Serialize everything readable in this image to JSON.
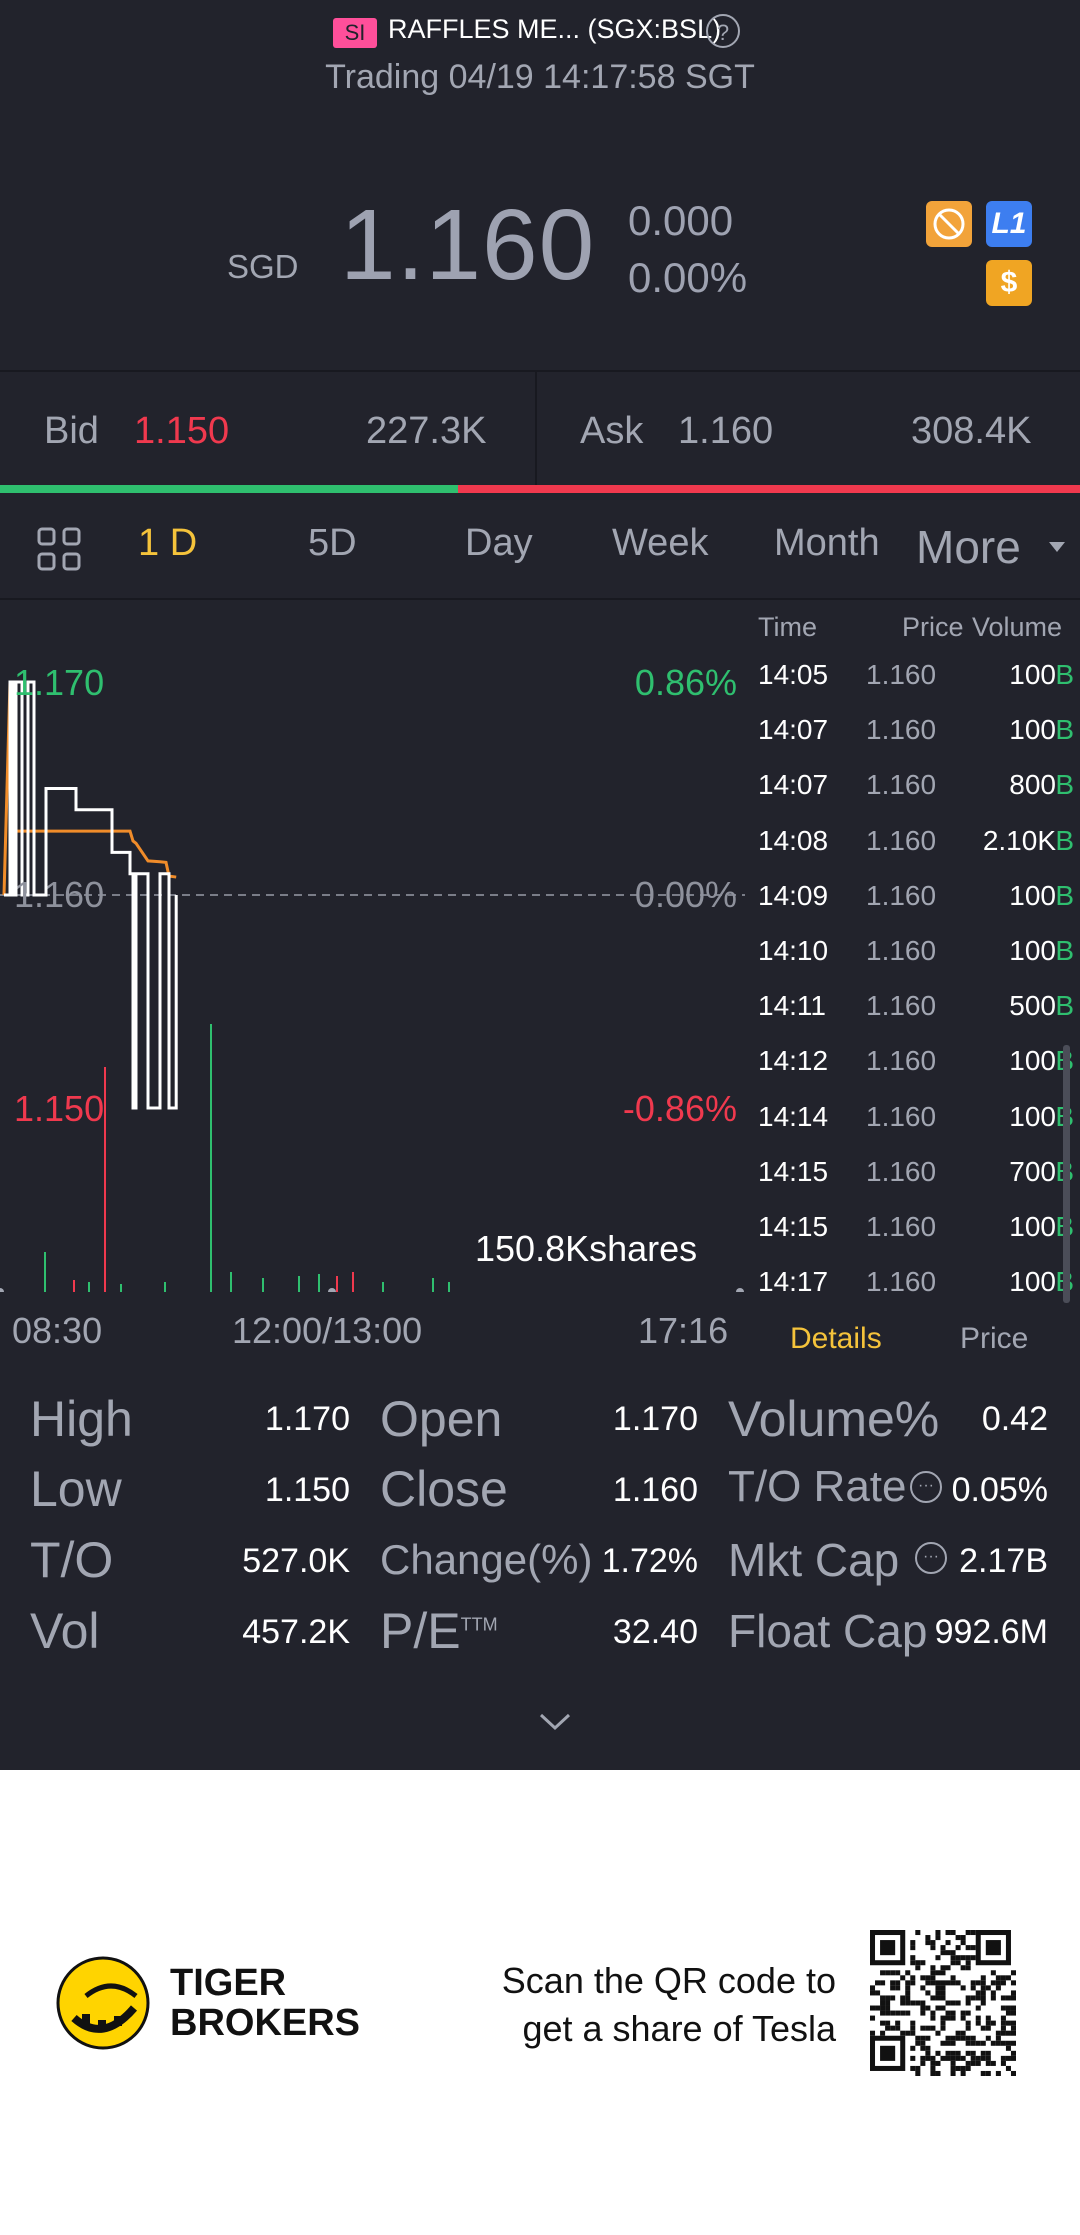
{
  "header": {
    "market_tag": "SI",
    "symbol": "RAFFLES ME... (SGX:BSL)",
    "help_icon": "?",
    "trading_status": "Trading 04/19 14:17:58 SGT",
    "currency": "SGD",
    "price": "1.160",
    "change": "0.000",
    "change_pct": "0.00%",
    "badges": [
      "no-short-icon",
      "L1-badge",
      "dollar-badge"
    ],
    "badge_l1": "L1",
    "badge_dollar": "$"
  },
  "quote": {
    "bid_label": "Bid",
    "bid_price": "1.150",
    "bid_size": "227.3K",
    "ask_label": "Ask",
    "ask_price": "1.160",
    "ask_size": "308.4K"
  },
  "tabs": {
    "items": [
      "1 D",
      "5D",
      "Day",
      "Week",
      "Month",
      "More"
    ],
    "active": "1 D"
  },
  "chart": {
    "upper_price": "1.170",
    "upper_pct": "0.86%",
    "mid_price": "1.160",
    "mid_pct": "0.00%",
    "lower_price": "1.150",
    "lower_pct": "-0.86%",
    "volume_label": "150.8Kshares",
    "x_left": "08:30",
    "x_mid": "12:00/13:00",
    "x_right": "17:16",
    "colors": {
      "up": "#2fbf6f",
      "down": "#f0394e",
      "avg": "#f08c2a",
      "price_line": "#ffffff"
    }
  },
  "chart_data": {
    "type": "line",
    "title": "",
    "ylim": [
      1.15,
      1.17
    ],
    "series": [
      {
        "x": [
          "08:30",
          "08:40",
          "08:45",
          "08:50",
          "09:00",
          "09:10",
          "09:20",
          "09:40",
          "10:30",
          "11:30",
          "12:00",
          "13:00",
          "13:05",
          "13:10",
          "13:30",
          "13:50",
          "14:00",
          "14:05",
          "14:17"
        ],
        "values": [
          1.16,
          1.17,
          1.16,
          1.17,
          1.16,
          1.17,
          1.16,
          1.165,
          1.164,
          1.162,
          1.161,
          1.161,
          1.15,
          1.161,
          1.15,
          1.161,
          1.161,
          1.15,
          1.16
        ]
      }
    ]
  },
  "ticks": {
    "headers": {
      "time": "Time",
      "price": "Price",
      "volume": "Volume"
    },
    "rows": [
      {
        "time": "14:05",
        "price": "1.160",
        "volume": "100",
        "side": "B"
      },
      {
        "time": "14:07",
        "price": "1.160",
        "volume": "100",
        "side": "B"
      },
      {
        "time": "14:07",
        "price": "1.160",
        "volume": "800",
        "side": "B"
      },
      {
        "time": "14:08",
        "price": "1.160",
        "volume": "2.10K",
        "side": "B"
      },
      {
        "time": "14:09",
        "price": "1.160",
        "volume": "100",
        "side": "B"
      },
      {
        "time": "14:10",
        "price": "1.160",
        "volume": "100",
        "side": "B"
      },
      {
        "time": "14:11",
        "price": "1.160",
        "volume": "500",
        "side": "B"
      },
      {
        "time": "14:12",
        "price": "1.160",
        "volume": "100",
        "side": "B"
      },
      {
        "time": "14:14",
        "price": "1.160",
        "volume": "100",
        "side": "B"
      },
      {
        "time": "14:15",
        "price": "1.160",
        "volume": "700",
        "side": "B"
      },
      {
        "time": "14:15",
        "price": "1.160",
        "volume": "100",
        "side": "B"
      },
      {
        "time": "14:17",
        "price": "1.160",
        "volume": "100",
        "side": "B"
      }
    ],
    "tab_details": "Details",
    "tab_price": "Price"
  },
  "stats": {
    "high_label": "High",
    "high": "1.170",
    "low_label": "Low",
    "low": "1.150",
    "to_label": "T/O",
    "to": "527.0K",
    "vol_label": "Vol",
    "vol": "457.2K",
    "open_label": "Open",
    "open": "1.170",
    "close_label": "Close",
    "close": "1.160",
    "change_label": "Change(%)",
    "change": "1.72%",
    "pe_label": "P/E",
    "pe_sup": "TTM",
    "pe": "32.40",
    "volpct_label": "Volume%",
    "volpct": "0.42",
    "torate_label": "T/O Rate",
    "torate": "0.05%",
    "mktcap_label": "Mkt Cap",
    "mktcap": "2.17B",
    "floatcap_label": "Float Cap",
    "floatcap": "992.6M"
  },
  "footer": {
    "brand_line1": "TIGER",
    "brand_line2": "BROKERS",
    "promo_line1": "Scan the QR code to",
    "promo_line2": "get a share of Tesla"
  }
}
